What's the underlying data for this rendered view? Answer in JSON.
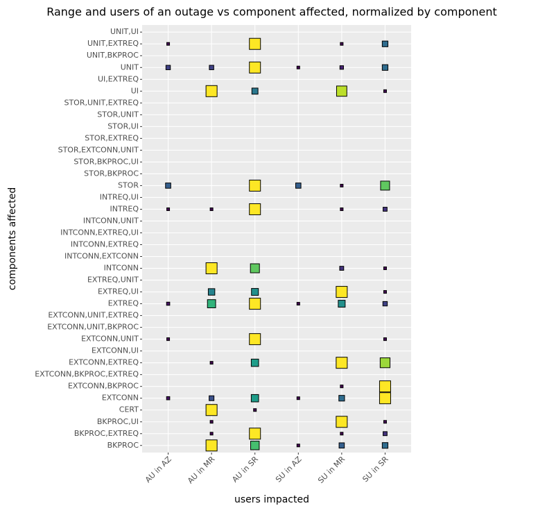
{
  "chart_data": {
    "type": "scatter",
    "title": "Range and users of an outage vs component affected, normalized by component",
    "x_label": "users impacted",
    "y_label": "components affected",
    "x_categories": [
      "AU in AZ",
      "AU in MR",
      "AU in SR",
      "SU in AZ",
      "SU in MR",
      "SU in SR"
    ],
    "y_categories": [
      "UNIT,UI",
      "UNIT,EXTREQ",
      "UNIT,BKPROC",
      "UNIT",
      "UI,EXTREQ",
      "UI",
      "STOR,UNIT,EXTREQ",
      "STOR,UNIT",
      "STOR,UI",
      "STOR,EXTREQ",
      "STOR,EXTCONN,UNIT",
      "STOR,BKPROC,UI",
      "STOR,BKPROC",
      "STOR",
      "INTREQ,UI",
      "INTREQ",
      "INTCONN,UNIT",
      "INTCONN,EXTREQ,UI",
      "INTCONN,EXTREQ",
      "INTCONN,EXTCONN",
      "INTCONN",
      "EXTREQ,UNIT",
      "EXTREQ,UI",
      "EXTREQ",
      "EXTCONN,UNIT,EXTREQ",
      "EXTCONN,UNIT,BKPROC",
      "EXTCONN,UNIT",
      "EXTCONN,UI",
      "EXTCONN,EXTREQ",
      "EXTCONN,BKPROC,EXTREQ",
      "EXTCONN,BKPROC",
      "EXTCONN",
      "CERT",
      "BKPROC,UI",
      "BKPROC,EXTREQ",
      "BKPROC"
    ],
    "colormap": "viridis",
    "grid": true,
    "points": [
      {
        "x": "AU in AZ",
        "y": "UNIT,EXTREQ",
        "value": 0
      },
      {
        "x": "AU in SR",
        "y": "UNIT,EXTREQ",
        "value": 1
      },
      {
        "x": "SU in MR",
        "y": "UNIT,EXTREQ",
        "value": 0
      },
      {
        "x": "SU in SR",
        "y": "UNIT,EXTREQ",
        "value": 0.35
      },
      {
        "x": "AU in AZ",
        "y": "UNIT",
        "value": 0.2
      },
      {
        "x": "AU in MR",
        "y": "UNIT",
        "value": 0.2
      },
      {
        "x": "AU in SR",
        "y": "UNIT",
        "value": 1
      },
      {
        "x": "SU in AZ",
        "y": "UNIT",
        "value": 0
      },
      {
        "x": "SU in MR",
        "y": "UNIT",
        "value": 0.1
      },
      {
        "x": "SU in SR",
        "y": "UNIT",
        "value": 0.35
      },
      {
        "x": "AU in MR",
        "y": "UI",
        "value": 1
      },
      {
        "x": "AU in SR",
        "y": "UI",
        "value": 0.4
      },
      {
        "x": "SU in MR",
        "y": "UI",
        "value": 0.9
      },
      {
        "x": "SU in SR",
        "y": "UI",
        "value": 0
      },
      {
        "x": "AU in AZ",
        "y": "STOR",
        "value": 0.3
      },
      {
        "x": "AU in SR",
        "y": "STOR",
        "value": 1
      },
      {
        "x": "SU in AZ",
        "y": "STOR",
        "value": 0.3
      },
      {
        "x": "SU in MR",
        "y": "STOR",
        "value": 0
      },
      {
        "x": "SU in SR",
        "y": "STOR",
        "value": 0.75
      },
      {
        "x": "AU in AZ",
        "y": "INTREQ",
        "value": 0
      },
      {
        "x": "AU in MR",
        "y": "INTREQ",
        "value": 0
      },
      {
        "x": "AU in SR",
        "y": "INTREQ",
        "value": 1
      },
      {
        "x": "SU in MR",
        "y": "INTREQ",
        "value": 0
      },
      {
        "x": "SU in SR",
        "y": "INTREQ",
        "value": 0.15
      },
      {
        "x": "AU in MR",
        "y": "INTCONN",
        "value": 1
      },
      {
        "x": "AU in SR",
        "y": "INTCONN",
        "value": 0.75
      },
      {
        "x": "SU in MR",
        "y": "INTCONN",
        "value": 0.15
      },
      {
        "x": "SU in SR",
        "y": "INTCONN",
        "value": 0
      },
      {
        "x": "AU in MR",
        "y": "EXTREQ,UI",
        "value": 0.45
      },
      {
        "x": "AU in SR",
        "y": "EXTREQ,UI",
        "value": 0.5
      },
      {
        "x": "SU in MR",
        "y": "EXTREQ,UI",
        "value": 1
      },
      {
        "x": "SU in SR",
        "y": "EXTREQ,UI",
        "value": 0
      },
      {
        "x": "AU in AZ",
        "y": "EXTREQ",
        "value": 0.05
      },
      {
        "x": "AU in MR",
        "y": "EXTREQ",
        "value": 0.65
      },
      {
        "x": "AU in SR",
        "y": "EXTREQ",
        "value": 1
      },
      {
        "x": "SU in AZ",
        "y": "EXTREQ",
        "value": 0
      },
      {
        "x": "SU in MR",
        "y": "EXTREQ",
        "value": 0.5
      },
      {
        "x": "SU in SR",
        "y": "EXTREQ",
        "value": 0.2
      },
      {
        "x": "AU in AZ",
        "y": "EXTCONN,UNIT",
        "value": 0
      },
      {
        "x": "AU in SR",
        "y": "EXTCONN,UNIT",
        "value": 1
      },
      {
        "x": "SU in SR",
        "y": "EXTCONN,UNIT",
        "value": 0
      },
      {
        "x": "AU in MR",
        "y": "EXTCONN,EXTREQ",
        "value": 0
      },
      {
        "x": "AU in SR",
        "y": "EXTCONN,EXTREQ",
        "value": 0.55
      },
      {
        "x": "SU in MR",
        "y": "EXTCONN,EXTREQ",
        "value": 1
      },
      {
        "x": "SU in SR",
        "y": "EXTCONN,EXTREQ",
        "value": 0.85
      },
      {
        "x": "SU in MR",
        "y": "EXTCONN,BKPROC",
        "value": 0
      },
      {
        "x": "SU in SR",
        "y": "EXTCONN,BKPROC",
        "value": 1
      },
      {
        "x": "AU in AZ",
        "y": "EXTCONN",
        "value": 0.05
      },
      {
        "x": "AU in MR",
        "y": "EXTCONN",
        "value": 0.25
      },
      {
        "x": "AU in SR",
        "y": "EXTCONN",
        "value": 0.55
      },
      {
        "x": "SU in AZ",
        "y": "EXTCONN",
        "value": 0
      },
      {
        "x": "SU in MR",
        "y": "EXTCONN",
        "value": 0.35
      },
      {
        "x": "SU in SR",
        "y": "EXTCONN",
        "value": 1
      },
      {
        "x": "AU in MR",
        "y": "CERT",
        "value": 1
      },
      {
        "x": "AU in SR",
        "y": "CERT",
        "value": 0
      },
      {
        "x": "AU in MR",
        "y": "BKPROC,UI",
        "value": 0
      },
      {
        "x": "SU in MR",
        "y": "BKPROC,UI",
        "value": 1
      },
      {
        "x": "SU in SR",
        "y": "BKPROC,UI",
        "value": 0
      },
      {
        "x": "AU in MR",
        "y": "BKPROC,EXTREQ",
        "value": 0
      },
      {
        "x": "AU in SR",
        "y": "BKPROC,EXTREQ",
        "value": 1
      },
      {
        "x": "SU in MR",
        "y": "BKPROC,EXTREQ",
        "value": 0
      },
      {
        "x": "SU in SR",
        "y": "BKPROC,EXTREQ",
        "value": 0.15
      },
      {
        "x": "AU in MR",
        "y": "BKPROC",
        "value": 1
      },
      {
        "x": "AU in SR",
        "y": "BKPROC",
        "value": 0.7
      },
      {
        "x": "SU in AZ",
        "y": "BKPROC",
        "value": 0
      },
      {
        "x": "SU in MR",
        "y": "BKPROC",
        "value": 0.3
      },
      {
        "x": "SU in SR",
        "y": "BKPROC",
        "value": 0.35
      }
    ]
  }
}
